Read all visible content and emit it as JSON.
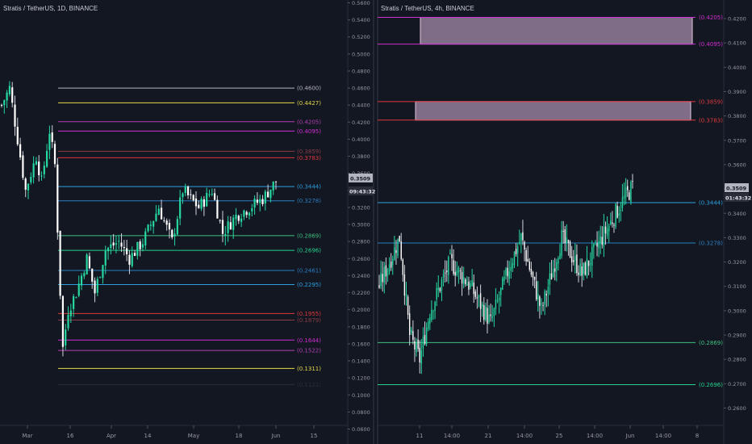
{
  "charts": [
    {
      "title": "Stratis / TetherUS, 1D, BINANCE",
      "y_ticks": [
        "0.5600",
        "0.5400",
        "0.5200",
        "0.5000",
        "0.4800",
        "0.4600",
        "0.4400",
        "0.4200",
        "0.4000",
        "0.3800",
        "0.3600",
        "0.3400",
        "0.3200",
        "0.3000",
        "0.2800",
        "0.2600",
        "0.2400",
        "0.2200",
        "0.2000",
        "0.1800",
        "0.1600",
        "0.1400",
        "0.1200",
        "0.1000",
        "0.0800",
        "0.0600"
      ],
      "x_ticks": [
        "Mar",
        "16",
        "Apr",
        "14",
        "May",
        "18",
        "Jun",
        "15"
      ],
      "price_tag": "0.3509",
      "countdown_tag": "09:43:32",
      "level_labels": [
        "(0.4600)",
        "(0.4427)",
        "(0.4205)",
        "(0.4095)",
        "(0.3859)",
        "(0.3783)",
        "(0.3444)",
        "(0.3278)",
        "(0.2869)",
        "(0.2696)",
        "(0.2461)",
        "(0.2295)",
        "(0.1955)",
        "(0.1879)",
        "(0.1644)",
        "(0.1522)",
        "(0.1311)",
        "(0.1122)"
      ]
    },
    {
      "title": "Stratis / TetherUS, 4h, BINANCE",
      "y_ticks": [
        "0.4200",
        "0.4100",
        "0.4000",
        "0.3900",
        "0.3800",
        "0.3700",
        "0.3600",
        "0.3500",
        "0.3400",
        "0.3300",
        "0.3200",
        "0.3100",
        "0.3000",
        "0.2900",
        "0.2800",
        "0.2700",
        "0.2600"
      ],
      "x_ticks": [
        "11",
        "14:00",
        "21",
        "14:00",
        "25",
        "14:00",
        "Jun",
        "14:00",
        "8"
      ],
      "price_tag": "0.3509",
      "countdown_tag": "01:43:32",
      "level_labels": [
        "(0.4205)",
        "(0.4095)",
        "(0.3859)",
        "(0.3783)",
        "(0.3444)",
        "(0.3278)",
        "(0.2869)",
        "(0.2696)"
      ]
    }
  ],
  "chart_data": [
    {
      "type": "candlestick",
      "title": "Stratis / TetherUS, 1D, BINANCE",
      "symbol": "Stratis / TetherUS",
      "interval": "1D",
      "exchange": "BINANCE",
      "ylim": [
        0.06,
        0.56
      ],
      "last_price": 0.3509,
      "close_path": [
        {
          "date": "Feb 19",
          "close": 0.44
        },
        {
          "date": "Feb 22",
          "close": 0.46
        },
        {
          "date": "Feb 25",
          "close": 0.4
        },
        {
          "date": "Feb 28",
          "close": 0.34
        },
        {
          "date": "Mar 3",
          "close": 0.38
        },
        {
          "date": "Mar 5",
          "close": 0.35
        },
        {
          "date": "Mar 8",
          "close": 0.41
        },
        {
          "date": "Mar 10",
          "close": 0.37
        },
        {
          "date": "Mar 12",
          "close": 0.22
        },
        {
          "date": "Mar 13",
          "close": 0.155
        },
        {
          "date": "Mar 15",
          "close": 0.2
        },
        {
          "date": "Mar 18",
          "close": 0.22
        },
        {
          "date": "Mar 22",
          "close": 0.26
        },
        {
          "date": "Mar 25",
          "close": 0.22
        },
        {
          "date": "Mar 29",
          "close": 0.27
        },
        {
          "date": "Apr 3",
          "close": 0.28
        },
        {
          "date": "Apr 7",
          "close": 0.26
        },
        {
          "date": "Apr 12",
          "close": 0.28
        },
        {
          "date": "Apr 18",
          "close": 0.32
        },
        {
          "date": "Apr 23",
          "close": 0.28
        },
        {
          "date": "Apr 27",
          "close": 0.34
        },
        {
          "date": "May 3",
          "close": 0.32
        },
        {
          "date": "May 8",
          "close": 0.34
        },
        {
          "date": "May 12",
          "close": 0.29
        },
        {
          "date": "May 17",
          "close": 0.31
        },
        {
          "date": "May 22",
          "close": 0.32
        },
        {
          "date": "May 27",
          "close": 0.33
        },
        {
          "date": "Jun 1",
          "close": 0.3509
        }
      ],
      "levels": [
        {
          "value": 0.46,
          "color": "#b2b5be"
        },
        {
          "value": 0.4427,
          "color": "#e6d84a"
        },
        {
          "value": 0.4205,
          "color": "#b43fb4"
        },
        {
          "value": 0.4095,
          "color": "#d12ed1"
        },
        {
          "value": 0.3859,
          "color": "#8e3b45"
        },
        {
          "value": 0.3783,
          "color": "#e0393c"
        },
        {
          "value": 0.3444,
          "color": "#2d9fdd"
        },
        {
          "value": 0.3278,
          "color": "#2a7fc0"
        },
        {
          "value": 0.2869,
          "color": "#3fbf7f"
        },
        {
          "value": 0.2696,
          "color": "#23d18b"
        },
        {
          "value": 0.2461,
          "color": "#2a7fc0"
        },
        {
          "value": 0.2295,
          "color": "#2d9fdd"
        },
        {
          "value": 0.1955,
          "color": "#e0393c"
        },
        {
          "value": 0.1879,
          "color": "#8e3b45"
        },
        {
          "value": 0.1644,
          "color": "#d12ed1"
        },
        {
          "value": 0.1522,
          "color": "#b43fb4"
        },
        {
          "value": 0.1311,
          "color": "#e6d84a"
        },
        {
          "value": 0.1122,
          "color": "#2a2e39"
        }
      ]
    },
    {
      "type": "candlestick",
      "title": "Stratis / TetherUS, 4h, BINANCE",
      "symbol": "Stratis / TetherUS",
      "interval": "4h",
      "exchange": "BINANCE",
      "ylim": [
        0.25,
        0.425
      ],
      "last_price": 0.3509,
      "close_path": [
        {
          "date": "May 7",
          "close": 0.31
        },
        {
          "date": "May 9",
          "close": 0.33
        },
        {
          "date": "May 10",
          "close": 0.29
        },
        {
          "date": "May 11",
          "close": 0.28
        },
        {
          "date": "May 12",
          "close": 0.3
        },
        {
          "date": "May 14",
          "close": 0.32
        },
        {
          "date": "May 16",
          "close": 0.31
        },
        {
          "date": "May 18",
          "close": 0.295
        },
        {
          "date": "May 20",
          "close": 0.32
        },
        {
          "date": "May 21",
          "close": 0.33
        },
        {
          "date": "May 23",
          "close": 0.3
        },
        {
          "date": "May 25",
          "close": 0.33
        },
        {
          "date": "May 27",
          "close": 0.315
        },
        {
          "date": "May 29",
          "close": 0.33
        },
        {
          "date": "May 31",
          "close": 0.345
        },
        {
          "date": "Jun 1",
          "close": 0.3509
        }
      ],
      "zones": [
        {
          "from": 0.4095,
          "to": 0.4205,
          "color": "#d12ed1"
        },
        {
          "from": 0.3783,
          "to": 0.3859,
          "color": "#e0393c"
        }
      ],
      "levels": [
        {
          "value": 0.4205,
          "color": "#d12ed1"
        },
        {
          "value": 0.4095,
          "color": "#d12ed1"
        },
        {
          "value": 0.3859,
          "color": "#e0393c"
        },
        {
          "value": 0.3783,
          "color": "#e0393c"
        },
        {
          "value": 0.3444,
          "color": "#2d9fdd"
        },
        {
          "value": 0.3278,
          "color": "#2a7fc0"
        },
        {
          "value": 0.2869,
          "color": "#3fbf7f"
        },
        {
          "value": 0.2696,
          "color": "#23d18b"
        }
      ]
    }
  ]
}
